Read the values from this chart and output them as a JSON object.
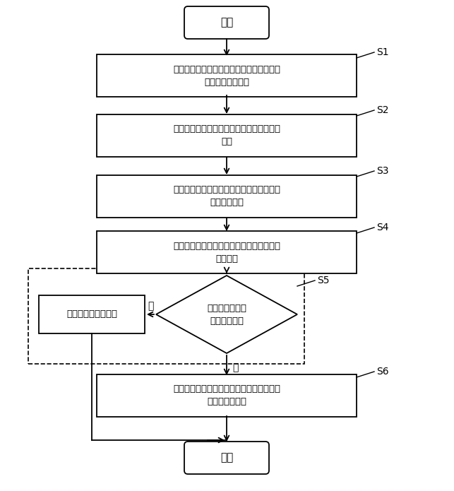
{
  "bg_color": "#ffffff",
  "start_text": "开始",
  "end_text": "结束",
  "s1_text": "对用户每个历史操作日志提取特征值，得到\n历史日志特征向量",
  "s2_text": "在用户输入登录密码后，记录用户实时操作\n日志",
  "s3_text": "对用户实时操作日志提取特征值，得到实时\n日志特征向量",
  "s4_text": "计算实时日志特征向量与历史日志特征向量\n的匹配性",
  "s5_text": "判断匹配性是否\n低于匹配阈值",
  "safe_text": "用户登录为安全行为",
  "s6_text": "进入动态人脸验证，在验证通过后，则用户\n登录为安全行为",
  "no_text": "否",
  "yes_text": "是",
  "labels": [
    "S1",
    "S2",
    "S3",
    "S4",
    "S5",
    "S6"
  ]
}
